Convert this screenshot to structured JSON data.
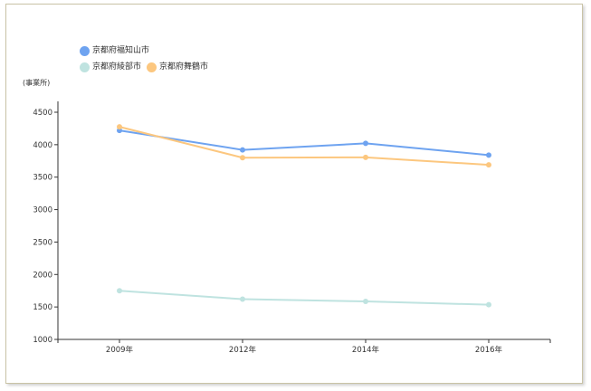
{
  "chart_data": {
    "type": "line",
    "title": "",
    "ylabel": "(事業所)",
    "categories": [
      "2009年",
      "2012年",
      "2014年",
      "2016年"
    ],
    "ylim": [
      1000,
      4500
    ],
    "yticks": [
      1000,
      1500,
      2000,
      2500,
      3000,
      3500,
      4000,
      4500
    ],
    "legend_position": "top-left",
    "grid": false,
    "series": [
      {
        "name": "京都府福知山市",
        "color": "#6ea3f0",
        "values": [
          4220,
          3920,
          4020,
          3840
        ]
      },
      {
        "name": "京都府綾部市",
        "color": "#bfe3e0",
        "values": [
          1750,
          1620,
          1585,
          1535
        ]
      },
      {
        "name": "京都府舞鶴市",
        "color": "#fcc77f",
        "values": [
          4275,
          3800,
          3805,
          3690
        ]
      }
    ]
  }
}
